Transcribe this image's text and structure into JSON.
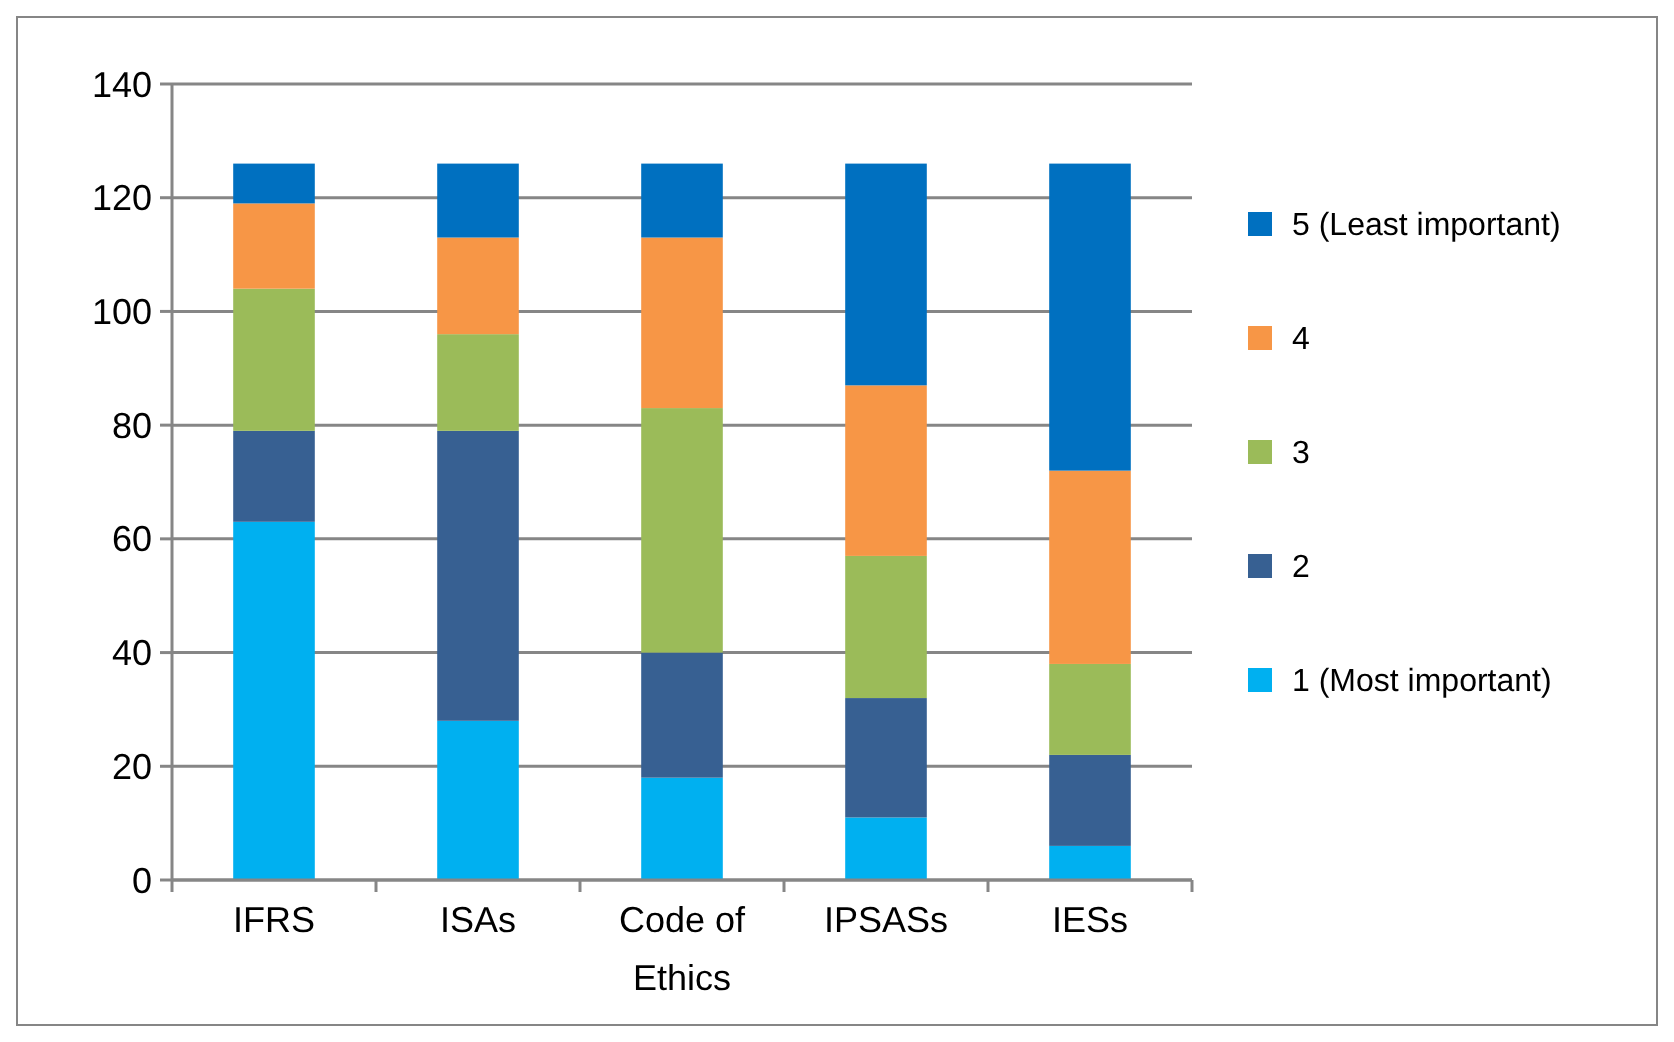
{
  "chart_data": {
    "type": "bar",
    "stacked": true,
    "categories": [
      "IFRS",
      "ISAs",
      "Code of Ethics",
      "IPSASs",
      "IESs"
    ],
    "series": [
      {
        "name": "1 (Most important)",
        "color": "#00b0f0",
        "values": [
          63,
          28,
          18,
          11,
          6
        ]
      },
      {
        "name": "2",
        "color": "#376092",
        "values": [
          16,
          51,
          22,
          21,
          16
        ]
      },
      {
        "name": "3",
        "color": "#9bbb59",
        "values": [
          25,
          17,
          43,
          25,
          16
        ]
      },
      {
        "name": "4",
        "color": "#f79646",
        "values": [
          15,
          17,
          30,
          30,
          34
        ]
      },
      {
        "name": "5 (Least important)",
        "color": "#0070c0",
        "values": [
          7,
          13,
          13,
          39,
          54
        ]
      }
    ],
    "ylim": [
      0,
      140
    ],
    "yticks": [
      0,
      20,
      40,
      60,
      80,
      100,
      120,
      140
    ],
    "grid": "y",
    "legend": "right"
  }
}
